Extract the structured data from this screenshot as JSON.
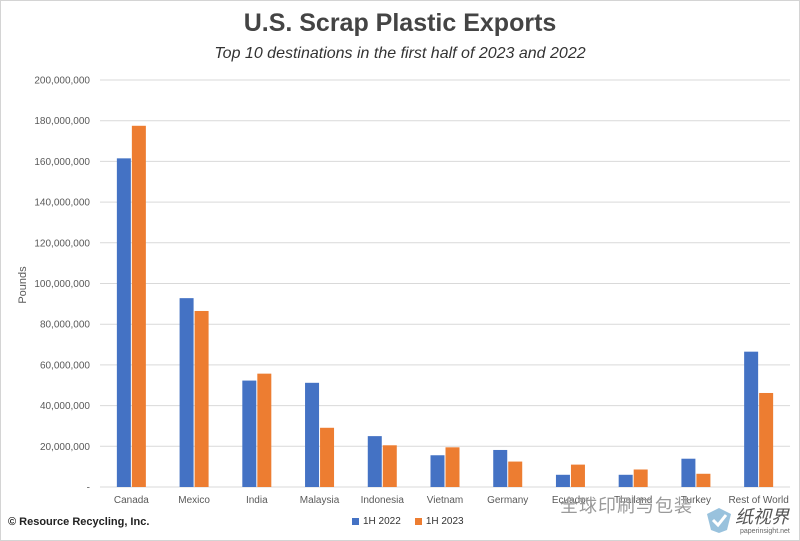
{
  "chart_data": {
    "type": "bar",
    "title": "U.S. Scrap Plastic Exports",
    "subtitle": "Top 10 destinations in the first half of 2023 and 2022",
    "ylabel": "Pounds",
    "xlabel": "",
    "ylim": [
      0,
      200000000
    ],
    "yticks": [
      "-",
      "20,000,000",
      "40,000,000",
      "60,000,000",
      "80,000,000",
      "100,000,000",
      "120,000,000",
      "140,000,000",
      "160,000,000",
      "180,000,000",
      "200,000,000"
    ],
    "ytick_values": [
      0,
      20000000,
      40000000,
      60000000,
      80000000,
      100000000,
      120000000,
      140000000,
      160000000,
      180000000,
      200000000
    ],
    "grid": true,
    "legend_position": "bottom",
    "categories": [
      "Canada",
      "Mexico",
      "India",
      "Malaysia",
      "Indonesia",
      "Vietnam",
      "Germany",
      "Ecuador",
      "Thailand",
      "Turkey",
      "Rest of World"
    ],
    "series": [
      {
        "name": "1H 2022",
        "color": "#4472c4",
        "values": [
          161500000,
          92800000,
          52300000,
          51200000,
          25000000,
          15600000,
          18200000,
          6000000,
          6000000,
          13900000,
          66500000
        ]
      },
      {
        "name": "1H 2023",
        "color": "#ed7d31",
        "values": [
          177500000,
          86500000,
          55700000,
          29100000,
          20500000,
          19500000,
          12500000,
          11000000,
          8600000,
          6500000,
          46200000
        ]
      }
    ]
  },
  "source": "© Resource Recycling, Inc.",
  "watermark": {
    "brand": "全球印刷与包装",
    "logo_text": "纸视界",
    "url": "paperinsight.net"
  },
  "colors": {
    "grid": "#d9d9d9",
    "axis_text": "#595959"
  }
}
